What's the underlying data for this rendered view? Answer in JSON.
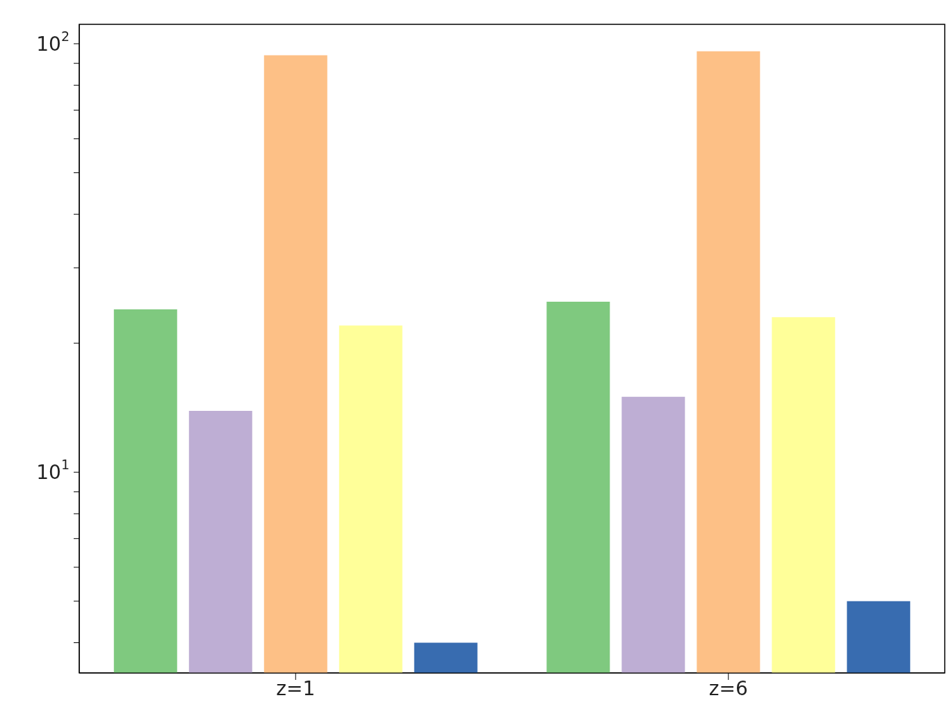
{
  "chart_data": {
    "type": "bar",
    "categories": [
      "z=1",
      "z=6"
    ],
    "series": [
      {
        "color": "#7fc97f",
        "values": [
          24,
          25
        ]
      },
      {
        "color": "#beaed4",
        "values": [
          13.9,
          15
        ]
      },
      {
        "color": "#fdc086",
        "values": [
          94,
          96
        ]
      },
      {
        "color": "#ffff99",
        "values": [
          22,
          23
        ]
      },
      {
        "color": "#386cb0",
        "values": [
          4,
          5
        ]
      }
    ],
    "log": "y",
    "ylim": [
      3.4,
      111
    ],
    "yticks": [
      {
        "value": 4,
        "label": null
      },
      {
        "value": 5,
        "label": null
      },
      {
        "value": 6,
        "label": null
      },
      {
        "value": 7,
        "label": null
      },
      {
        "value": 8,
        "label": null
      },
      {
        "value": 9,
        "label": null
      },
      {
        "value": 10,
        "label": "10$^{1}$"
      },
      {
        "value": 20,
        "label": null
      },
      {
        "value": 30,
        "label": null
      },
      {
        "value": 40,
        "label": null
      },
      {
        "value": 50,
        "label": null
      },
      {
        "value": 60,
        "label": null
      },
      {
        "value": 70,
        "label": null
      },
      {
        "value": 80,
        "label": null
      },
      {
        "value": 90,
        "label": null
      },
      {
        "value": 100,
        "label": "10$^{2}$"
      }
    ],
    "grid": false,
    "legend": false
  }
}
